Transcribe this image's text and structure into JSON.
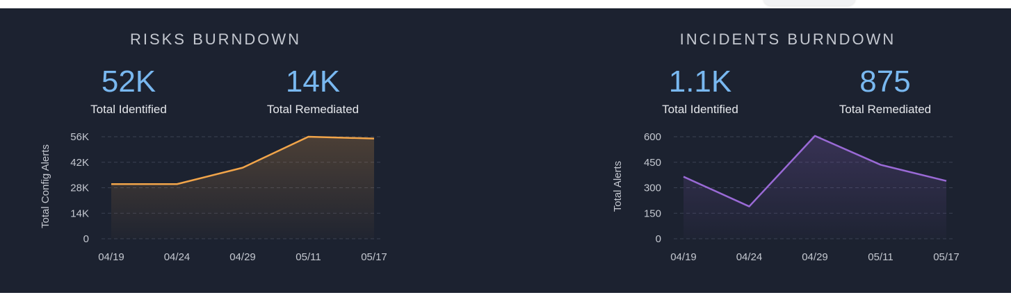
{
  "colors": {
    "risks_line": "#f2a54a",
    "incidents_line": "#9a6ad6",
    "stat_value": "#79b8f0",
    "background": "#1c2230"
  },
  "widgets": [
    {
      "id": "risks",
      "title": "RISKS BURNDOWN",
      "stats": [
        {
          "value": "52K",
          "label": "Total Identified"
        },
        {
          "value": "14K",
          "label": "Total Remediated"
        }
      ]
    },
    {
      "id": "incidents",
      "title": "INCIDENTS BURNDOWN",
      "stats": [
        {
          "value": "1.1K",
          "label": "Total Identified"
        },
        {
          "value": "875",
          "label": "Total Remediated"
        }
      ]
    }
  ],
  "chart_data": [
    {
      "type": "area",
      "categories": [
        "04/19",
        "04/24",
        "04/29",
        "05/11",
        "05/17"
      ],
      "series": [
        {
          "values": [
            30000,
            30000,
            39000,
            56000,
            55000
          ]
        }
      ],
      "ylabel": "Total Config Alerts",
      "yticks": [
        "0",
        "14K",
        "28K",
        "42K",
        "56K"
      ],
      "ytick_values": [
        0,
        14000,
        28000,
        42000,
        56000
      ],
      "ylim": [
        0,
        56000
      ],
      "grid": true,
      "color": "#f2a54a"
    },
    {
      "type": "area",
      "categories": [
        "04/19",
        "04/24",
        "04/29",
        "05/11",
        "05/17"
      ],
      "series": [
        {
          "values": [
            365,
            190,
            605,
            435,
            340
          ]
        }
      ],
      "ylabel": "Total Alerts",
      "yticks": [
        "0",
        "150",
        "300",
        "450",
        "600"
      ],
      "ytick_values": [
        0,
        150,
        300,
        450,
        600
      ],
      "ylim": [
        0,
        600
      ],
      "grid": true,
      "color": "#9a6ad6"
    }
  ]
}
